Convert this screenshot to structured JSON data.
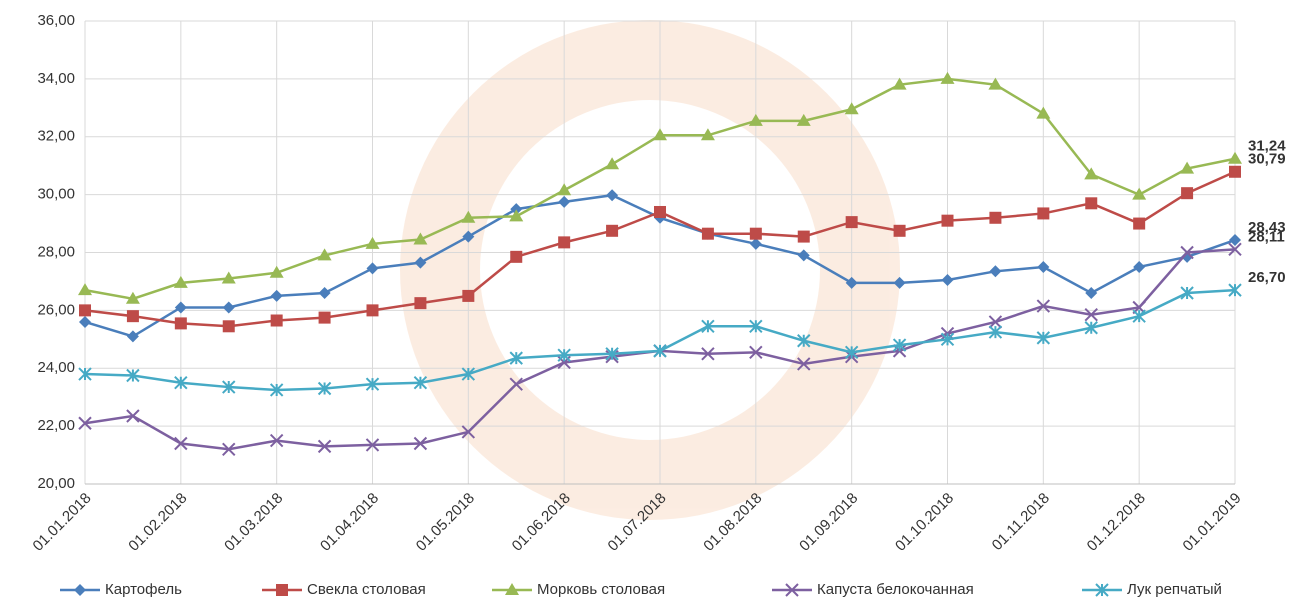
{
  "chart_data": {
    "type": "line",
    "categories": [
      "01.01.2018",
      null,
      "01.02.2018",
      null,
      "01.03.2018",
      null,
      "01.04.2018",
      null,
      "01.05.2018",
      null,
      "01.06.2018",
      null,
      "01.07.2018",
      null,
      "01.08.2018",
      null,
      "01.09.2018",
      null,
      "01.10.2018",
      null,
      "01.11.2018",
      null,
      "01.12.2018",
      null,
      "01.01.2019"
    ],
    "ylim": [
      20,
      36
    ],
    "yticks": [
      {
        "value": 20,
        "label": "20,00"
      },
      {
        "value": 22,
        "label": "22,00"
      },
      {
        "value": 24,
        "label": "24,00"
      },
      {
        "value": 26,
        "label": "26,00"
      },
      {
        "value": 28,
        "label": "28,00"
      },
      {
        "value": 30,
        "label": "30,00"
      },
      {
        "value": 32,
        "label": "32,00"
      },
      {
        "value": 34,
        "label": "34,00"
      },
      {
        "value": 36,
        "label": "36,00"
      }
    ],
    "grid": true,
    "legend": "bottom",
    "series": [
      {
        "name": "Картофель",
        "color": "#4a7ebb",
        "marker": "diamond",
        "values": [
          25.6,
          25.1,
          26.1,
          26.1,
          26.5,
          26.6,
          27.45,
          27.65,
          28.55,
          29.5,
          29.75,
          29.98,
          29.2,
          28.65,
          28.3,
          27.9,
          26.95,
          26.95,
          27.05,
          27.35,
          27.5,
          26.6,
          27.5,
          27.85,
          28.43
        ],
        "value_labels": [
          null,
          null,
          null,
          null,
          null,
          null,
          null,
          null,
          null,
          null,
          null,
          null,
          null,
          null,
          null,
          null,
          null,
          null,
          null,
          null,
          null,
          null,
          null,
          null,
          "28,43"
        ]
      },
      {
        "name": "Свекла столовая",
        "color": "#be4b48",
        "marker": "square",
        "values": [
          26.0,
          25.8,
          25.55,
          25.45,
          25.65,
          25.75,
          26.0,
          26.25,
          26.5,
          27.85,
          28.35,
          28.75,
          29.4,
          28.65,
          28.65,
          28.55,
          29.05,
          28.75,
          29.1,
          29.2,
          29.35,
          29.7,
          29.0,
          30.05,
          30.79
        ],
        "value_labels": [
          null,
          null,
          null,
          null,
          null,
          null,
          null,
          null,
          null,
          null,
          null,
          null,
          null,
          null,
          null,
          null,
          null,
          null,
          null,
          null,
          null,
          null,
          null,
          null,
          "30,79"
        ]
      },
      {
        "name": "Морковь столовая",
        "color": "#98b954",
        "marker": "triangle",
        "values": [
          26.7,
          26.4,
          26.95,
          27.1,
          27.3,
          27.9,
          28.3,
          28.45,
          29.2,
          29.25,
          30.15,
          31.05,
          32.05,
          32.05,
          32.55,
          32.55,
          32.95,
          33.8,
          34.0,
          33.8,
          32.8,
          30.7,
          30.0,
          30.9,
          31.24
        ],
        "value_labels": [
          null,
          null,
          null,
          null,
          null,
          null,
          null,
          null,
          null,
          null,
          null,
          null,
          null,
          null,
          null,
          null,
          null,
          null,
          null,
          null,
          null,
          null,
          null,
          null,
          "31,24"
        ]
      },
      {
        "name": "Капуста белокочанная",
        "color": "#7d60a0",
        "marker": "x",
        "values": [
          22.1,
          22.35,
          21.4,
          21.2,
          21.5,
          21.3,
          21.35,
          21.4,
          21.8,
          23.45,
          24.2,
          24.4,
          24.6,
          24.5,
          24.55,
          24.15,
          24.4,
          24.6,
          25.2,
          25.6,
          26.15,
          25.85,
          26.1,
          28.0,
          28.11
        ],
        "value_labels": [
          null,
          null,
          null,
          null,
          null,
          null,
          null,
          null,
          null,
          null,
          null,
          null,
          null,
          null,
          null,
          null,
          null,
          null,
          null,
          null,
          null,
          null,
          null,
          null,
          "28,11"
        ]
      },
      {
        "name": "Лук репчатый",
        "color": "#46aac5",
        "marker": "star",
        "values": [
          23.8,
          23.75,
          23.5,
          23.35,
          23.25,
          23.3,
          23.45,
          23.5,
          23.8,
          24.35,
          24.45,
          24.5,
          24.6,
          25.45,
          25.45,
          24.95,
          24.55,
          24.8,
          25.0,
          25.25,
          25.05,
          25.4,
          25.8,
          26.6,
          26.7
        ],
        "value_labels": [
          null,
          null,
          null,
          null,
          null,
          null,
          null,
          null,
          null,
          null,
          null,
          null,
          null,
          null,
          null,
          null,
          null,
          null,
          null,
          null,
          null,
          null,
          null,
          null,
          "26,70"
        ]
      }
    ]
  }
}
